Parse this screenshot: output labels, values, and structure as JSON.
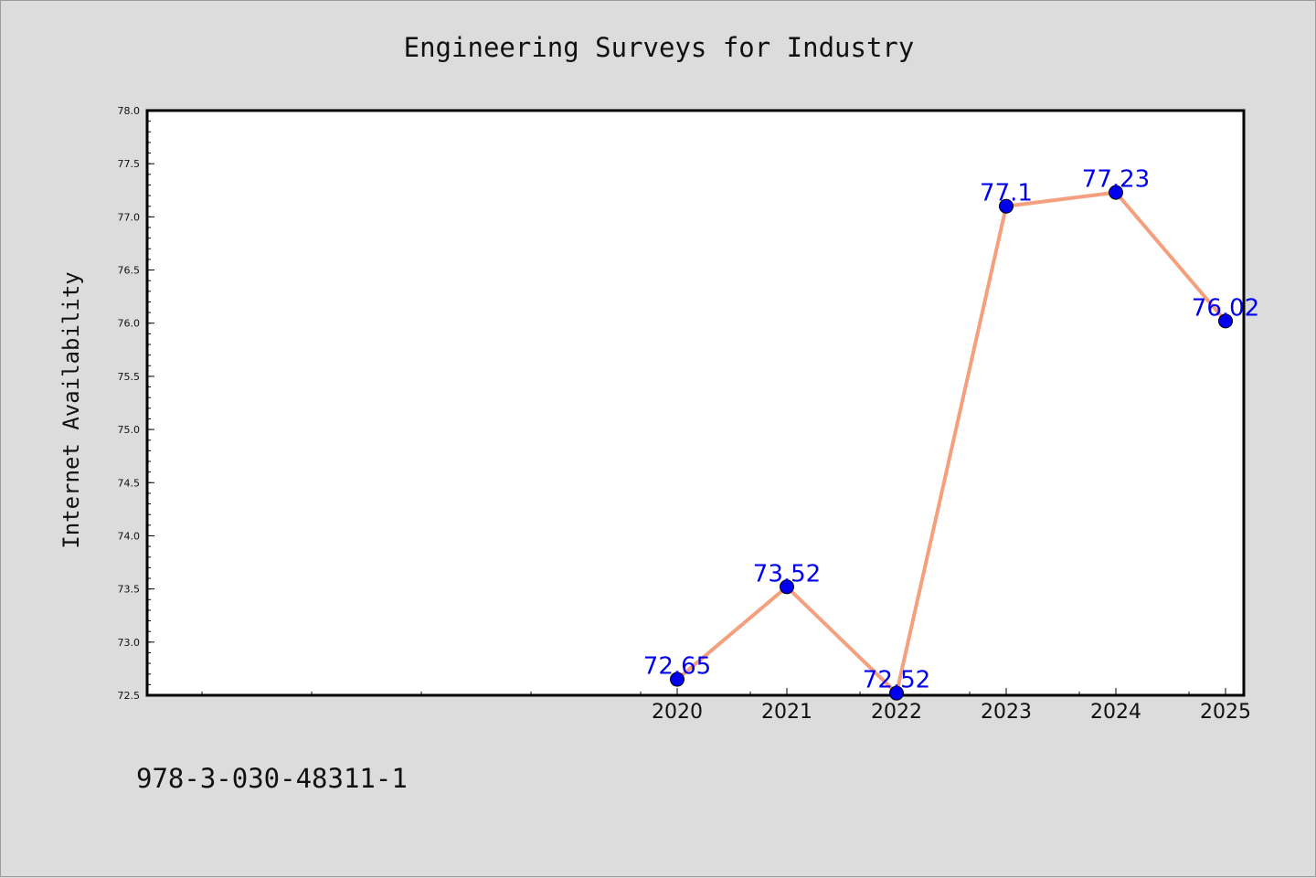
{
  "chart_data": {
    "type": "line",
    "title": "Engineering Surveys for Industry",
    "ylabel": "Internet Availability",
    "xlabel": "",
    "x": [
      "2020",
      "2021",
      "2022",
      "2023",
      "2024",
      "2025"
    ],
    "series": [
      {
        "values": [
          72.65,
          73.52,
          72.52,
          77.1,
          77.23,
          76.02
        ]
      }
    ],
    "data_labels": [
      "72.65",
      "73.52",
      "72.52",
      "77.1",
      "77.23",
      "76.02"
    ],
    "ylim": [
      72.5,
      78.0
    ],
    "yticks": [
      "72.5",
      "73.0",
      "73.5",
      "74.0",
      "74.5",
      "75.0",
      "75.5",
      "76.0",
      "76.5",
      "77.0",
      "77.5",
      "78.0"
    ],
    "grid": false,
    "colors": {
      "line": "#f4a07f",
      "marker": "#0000ee",
      "label": "#0000ee",
      "axes_bg": "#ffffff",
      "figure_bg": "#dcdcdc"
    }
  },
  "footer": {
    "text": "978-3-030-48311-1"
  }
}
